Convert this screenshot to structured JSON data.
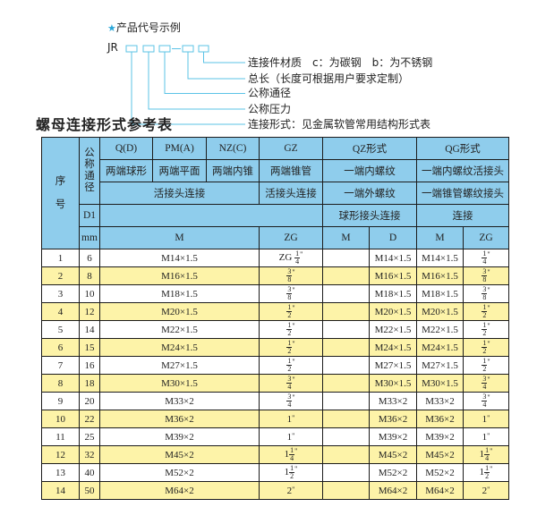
{
  "code_example": {
    "title": "产品代号示例",
    "star_icon": "star-icon",
    "prefix": "JR",
    "separator": "-",
    "labels": [
      "连接件材质　c：为碳钢　b：为不锈钢",
      "总长（长度可根据用户要求定制）",
      "公称通径",
      "公称压力",
      "连接形式：见金属软管常用结构形式表"
    ],
    "accent_color": "#5bc3e6"
  },
  "table_title": "螺母连接形式参考表",
  "header": {
    "seq": "序号",
    "dn": "公称通径",
    "types": [
      "Q(D)",
      "PM(A)",
      "NZ(C)",
      "GZ",
      "QZ形式",
      "QG形式"
    ],
    "row2": [
      "两端球形",
      "两端平面",
      "两端内锥",
      "两端锥管",
      "一端内螺纹",
      "一端内螺纹活接头"
    ],
    "row3": [
      "活接头连接",
      "活接头连接",
      "一端外螺纹",
      "一端锥管螺纹接头"
    ],
    "row4": [
      "D1",
      "",
      "球形接头连接",
      "连接"
    ],
    "row5": [
      "mm",
      "M",
      "ZG",
      "M",
      "D",
      "M",
      "ZG"
    ],
    "header_color": "#8fcdec",
    "stripe_color": "#fdf3a8"
  },
  "rows": [
    {
      "no": "1",
      "d1": "6",
      "m": "M14×1.5",
      "zg": {
        "pre": "ZG",
        "w": "",
        "n": "1",
        "d": "4"
      },
      "qz_m": "",
      "qz_d": "M14×1.5",
      "qg_m": "M14×1.5",
      "qg_zg": {
        "w": "",
        "n": "1",
        "d": "4"
      }
    },
    {
      "no": "2",
      "d1": "8",
      "m": "M16×1.5",
      "zg": {
        "w": "",
        "n": "3",
        "d": "8"
      },
      "qz_m": "",
      "qz_d": "M16×1.5",
      "qg_m": "M16×1.5",
      "qg_zg": {
        "w": "",
        "n": "3",
        "d": "8"
      }
    },
    {
      "no": "3",
      "d1": "10",
      "m": "M18×1.5",
      "zg": {
        "w": "",
        "n": "3",
        "d": "8"
      },
      "qz_m": "",
      "qz_d": "M18×1.5",
      "qg_m": "M18×1.5",
      "qg_zg": {
        "w": "",
        "n": "3",
        "d": "8"
      }
    },
    {
      "no": "4",
      "d1": "12",
      "m": "M20×1.5",
      "zg": {
        "w": "",
        "n": "1",
        "d": "2"
      },
      "qz_m": "",
      "qz_d": "M20×1.5",
      "qg_m": "M20×1.5",
      "qg_zg": {
        "w": "",
        "n": "1",
        "d": "2"
      }
    },
    {
      "no": "5",
      "d1": "14",
      "m": "M22×1.5",
      "zg": {
        "w": "",
        "n": "1",
        "d": "2"
      },
      "qz_m": "",
      "qz_d": "M22×1.5",
      "qg_m": "M22×1.5",
      "qg_zg": {
        "w": "",
        "n": "1",
        "d": "2"
      }
    },
    {
      "no": "6",
      "d1": "15",
      "m": "M24×1.5",
      "zg": {
        "w": "",
        "n": "1",
        "d": "2"
      },
      "qz_m": "",
      "qz_d": "M24×1.5",
      "qg_m": "M24×1.5",
      "qg_zg": {
        "w": "",
        "n": "1",
        "d": "2"
      }
    },
    {
      "no": "7",
      "d1": "16",
      "m": "M27×1.5",
      "zg": {
        "w": "",
        "n": "1",
        "d": "2"
      },
      "qz_m": "",
      "qz_d": "M27×1.5",
      "qg_m": "M27×1.5",
      "qg_zg": {
        "w": "",
        "n": "1",
        "d": "2"
      }
    },
    {
      "no": "8",
      "d1": "18",
      "m": "M30×1.5",
      "zg": {
        "w": "",
        "n": "3",
        "d": "4"
      },
      "qz_m": "",
      "qz_d": "M30×1.5",
      "qg_m": "M30×1.5",
      "qg_zg": {
        "w": "",
        "n": "3",
        "d": "4"
      }
    },
    {
      "no": "9",
      "d1": "20",
      "m": "M33×2",
      "zg": {
        "w": "",
        "n": "3",
        "d": "4"
      },
      "qz_m": "",
      "qz_d": "M33×2",
      "qg_m": "M33×2",
      "qg_zg": {
        "w": "",
        "n": "3",
        "d": "4"
      }
    },
    {
      "no": "10",
      "d1": "22",
      "m": "M36×2",
      "zg": {
        "w": "1"
      },
      "qz_m": "",
      "qz_d": "M36×2",
      "qg_m": "M36×2",
      "qg_zg": {
        "w": "1"
      }
    },
    {
      "no": "11",
      "d1": "25",
      "m": "M39×2",
      "zg": {
        "w": "1"
      },
      "qz_m": "",
      "qz_d": "M39×2",
      "qg_m": "M39×2",
      "qg_zg": {
        "w": "1"
      }
    },
    {
      "no": "12",
      "d1": "32",
      "m": "M45×2",
      "zg": {
        "w": "1",
        "n": "1",
        "d": "4"
      },
      "qz_m": "",
      "qz_d": "M45×2",
      "qg_m": "M45×2",
      "qg_zg": {
        "w": "1",
        "n": "1",
        "d": "4"
      }
    },
    {
      "no": "13",
      "d1": "40",
      "m": "M52×2",
      "zg": {
        "w": "1",
        "n": "1",
        "d": "2"
      },
      "qz_m": "",
      "qz_d": "M52×2",
      "qg_m": "M52×2",
      "qg_zg": {
        "w": "1",
        "n": "1",
        "d": "2"
      }
    },
    {
      "no": "14",
      "d1": "50",
      "m": "M64×2",
      "zg": {
        "w": "2"
      },
      "qz_m": "",
      "qz_d": "M64×2",
      "qg_m": "M64×2",
      "qg_zg": {
        "w": "2"
      }
    }
  ]
}
